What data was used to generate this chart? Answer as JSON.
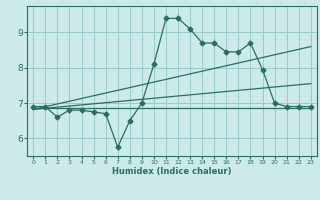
{
  "xlabel": "Humidex (Indice chaleur)",
  "background_color": "#cceaea",
  "grid_color": "#99cccc",
  "line_color": "#2a6e62",
  "x_ticks": [
    0,
    1,
    2,
    3,
    4,
    5,
    6,
    7,
    8,
    9,
    10,
    11,
    12,
    13,
    14,
    15,
    16,
    17,
    18,
    19,
    20,
    21,
    22,
    23
  ],
  "y_ticks": [
    6,
    7,
    8,
    9
  ],
  "ylim": [
    5.5,
    9.75
  ],
  "xlim": [
    -0.5,
    23.5
  ],
  "line1_x": [
    0,
    1,
    2,
    3,
    4,
    5,
    6,
    7,
    8,
    9,
    10,
    11,
    12,
    13,
    14,
    15,
    16,
    17,
    18,
    19,
    20,
    21,
    22,
    23
  ],
  "line1_y": [
    6.9,
    6.9,
    6.6,
    6.8,
    6.8,
    6.75,
    6.7,
    5.75,
    6.5,
    7.0,
    8.1,
    9.4,
    9.4,
    9.1,
    8.7,
    8.7,
    8.45,
    8.45,
    8.7,
    7.95,
    7.0,
    6.9,
    6.9,
    6.9
  ],
  "line2_x": [
    0,
    23
  ],
  "line2_y": [
    6.87,
    6.87
  ],
  "line3_x": [
    0,
    23
  ],
  "line3_y": [
    6.82,
    8.6
  ],
  "line4_x": [
    0,
    23
  ],
  "line4_y": [
    6.82,
    7.55
  ]
}
